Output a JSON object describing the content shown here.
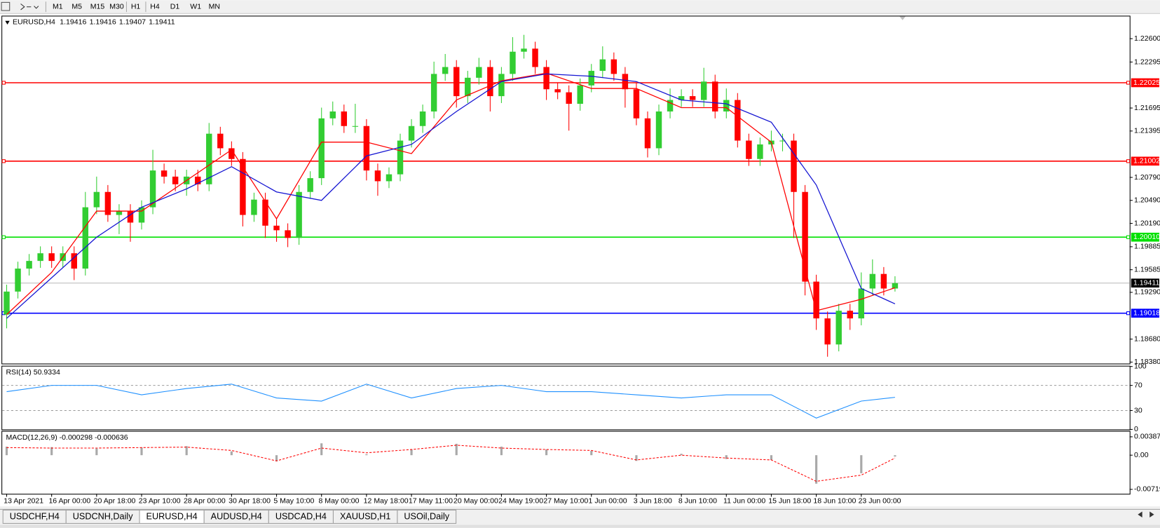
{
  "toolbar": {
    "timeframes": [
      "M1",
      "M5",
      "M15",
      "M30",
      "H1",
      "H4",
      "D1",
      "W1",
      "MN"
    ]
  },
  "chart_data": [
    {
      "type": "candlestick",
      "title": "EURUSD,H4",
      "quote": [
        1.19416,
        1.19416,
        1.19407,
        1.19411
      ],
      "categories": [
        "13 Apr 2021",
        null,
        null,
        null,
        "16 Apr 00:00",
        null,
        null,
        null,
        "20 Apr 18:00",
        null,
        null,
        null,
        "23 Apr 10:00",
        null,
        null,
        null,
        "28 Apr 00:00",
        null,
        null,
        null,
        "30 Apr 18:00",
        null,
        null,
        null,
        "5 May 10:00",
        null,
        null,
        null,
        "8 May 00:00",
        null,
        null,
        null,
        "12 May 18:00",
        null,
        null,
        null,
        "17 May 11:00",
        null,
        null,
        null,
        "20 May 00:00",
        null,
        null,
        null,
        "24 May 19:00",
        null,
        null,
        null,
        "27 May 10:00",
        null,
        null,
        null,
        "1 Jun 00:00",
        null,
        null,
        null,
        "3 Jun 18:00",
        null,
        null,
        null,
        "8 Jun 10:00",
        null,
        null,
        null,
        "11 Jun 00:00",
        null,
        null,
        null,
        "15 Jun 18:00",
        null,
        null,
        null,
        "18 Jun 10:00",
        null,
        null,
        null,
        "23 Jun 00:00",
        null,
        null,
        null
      ],
      "open": [
        1.19,
        1.193,
        1.196,
        1.197,
        1.198,
        1.197,
        1.198,
        1.196,
        1.204,
        1.206,
        1.203,
        1.2035,
        1.202,
        1.204,
        1.2088,
        1.208,
        1.207,
        1.208,
        1.207,
        1.2136,
        1.2117,
        1.2103,
        1.203,
        1.205,
        1.2016,
        1.201,
        1.2,
        1.206,
        1.2078,
        1.2156,
        1.2165,
        1.2146,
        1.2146,
        1.2088,
        1.2074,
        1.2083,
        1.2127,
        1.2146,
        1.2165,
        1.2214,
        1.2223,
        1.2185,
        1.2209,
        1.2223,
        1.2185,
        1.2214,
        1.2243,
        1.2247,
        1.2223,
        1.2194,
        1.219,
        1.2175,
        1.2199,
        1.2218,
        1.2233,
        1.2214,
        1.2194,
        1.2156,
        1.2117,
        1.2165,
        1.218,
        1.2185,
        1.218,
        1.2204,
        1.2165,
        1.218,
        1.2127,
        1.2103,
        1.2122,
        1.2127,
        1.2127,
        1.206,
        1.1943,
        1.1895,
        1.1861,
        1.1905,
        1.1895,
        1.1934,
        1.1953,
        1.1934
      ],
      "high": [
        1.1939,
        1.1969,
        1.1979,
        1.1989,
        1.1989,
        1.1989,
        1.1989,
        1.206,
        1.208,
        1.2069,
        1.2044,
        1.2044,
        1.2049,
        1.2115,
        1.2097,
        1.2089,
        1.2089,
        1.2089,
        1.215,
        1.2145,
        1.2126,
        1.2112,
        1.2059,
        1.2059,
        1.2025,
        1.2019,
        1.2069,
        1.2087,
        1.217,
        1.2178,
        1.2174,
        1.2175,
        1.2155,
        1.2097,
        1.2092,
        1.2136,
        1.2155,
        1.2174,
        1.223,
        1.224,
        1.2232,
        1.2218,
        1.2235,
        1.2232,
        1.2223,
        1.2262,
        1.2265,
        1.2256,
        1.2232,
        1.2203,
        1.2199,
        1.2208,
        1.2227,
        1.225,
        1.2242,
        1.2223,
        1.2203,
        1.2165,
        1.2174,
        1.2195,
        1.2194,
        1.2194,
        1.2222,
        1.2213,
        1.2195,
        1.2189,
        1.2136,
        1.2131,
        1.214,
        1.2136,
        1.2136,
        1.2069,
        1.1952,
        1.1904,
        1.1914,
        1.1914,
        1.1955,
        1.1972,
        1.1962,
        1.195
      ],
      "low": [
        1.1882,
        1.1921,
        1.1951,
        1.1961,
        1.1961,
        1.1961,
        1.1945,
        1.1951,
        1.2031,
        1.2021,
        1.2005,
        1.1995,
        1.2011,
        1.2031,
        1.2071,
        1.2061,
        1.2055,
        1.2061,
        1.2061,
        1.2108,
        1.2094,
        1.2015,
        1.2021,
        1.2,
        1.1995,
        1.1988,
        1.1991,
        1.2051,
        1.2069,
        1.2147,
        1.2137,
        1.2137,
        1.2075,
        1.2055,
        1.2065,
        1.2074,
        1.2118,
        1.2137,
        1.2156,
        1.2205,
        1.217,
        1.2176,
        1.22,
        1.2165,
        1.2176,
        1.2205,
        1.2234,
        1.2214,
        1.218,
        1.2181,
        1.214,
        1.2166,
        1.219,
        1.2209,
        1.2205,
        1.217,
        1.2147,
        1.2105,
        1.2108,
        1.2156,
        1.2171,
        1.2171,
        1.2171,
        1.2156,
        1.2156,
        1.2118,
        1.2094,
        1.2094,
        1.2113,
        1.2113,
        1.2,
        1.1925,
        1.188,
        1.1845,
        1.1852,
        1.188,
        1.1886,
        1.1925,
        1.1925,
        1.193
      ],
      "close": [
        1.193,
        1.196,
        1.197,
        1.198,
        1.197,
        1.198,
        1.196,
        1.204,
        1.206,
        1.203,
        1.2035,
        1.202,
        1.204,
        1.2088,
        1.208,
        1.207,
        1.208,
        1.207,
        1.2136,
        1.2117,
        1.2103,
        1.203,
        1.205,
        1.2016,
        1.201,
        1.2,
        1.206,
        1.2078,
        1.2156,
        1.2165,
        1.2146,
        1.2146,
        1.2088,
        1.2074,
        1.2083,
        1.2127,
        1.2146,
        1.2165,
        1.2214,
        1.2223,
        1.2185,
        1.2209,
        1.2223,
        1.2185,
        1.2214,
        1.2243,
        1.2247,
        1.2223,
        1.2194,
        1.219,
        1.2175,
        1.2199,
        1.2218,
        1.2233,
        1.2214,
        1.2194,
        1.2156,
        1.2117,
        1.2165,
        1.218,
        1.2185,
        1.218,
        1.2204,
        1.2165,
        1.218,
        1.2127,
        1.2103,
        1.2122,
        1.2127,
        1.2127,
        1.206,
        1.1943,
        1.1895,
        1.1861,
        1.1905,
        1.1895,
        1.1934,
        1.1953,
        1.1934,
        1.1941
      ],
      "up_color": "#32cd32",
      "down_color": "#ff0000",
      "series": [
        {
          "color": "#ff0000",
          "x": [
            0,
            4,
            8,
            12,
            16,
            20,
            24,
            28,
            32,
            36,
            40,
            44,
            48,
            52,
            56,
            60,
            64,
            68,
            72,
            76,
            79
          ],
          "values": [
            1.19,
            1.1955,
            1.2035,
            1.2035,
            1.2075,
            1.2115,
            1.2025,
            1.2125,
            1.2125,
            1.211,
            1.218,
            1.2205,
            1.2215,
            1.2195,
            1.2195,
            1.217,
            1.217,
            1.2125,
            1.1905,
            1.192,
            1.1935
          ]
        },
        {
          "color": "#1414d2",
          "x": [
            0,
            4,
            8,
            12,
            16,
            20,
            24,
            28,
            32,
            36,
            40,
            44,
            48,
            52,
            56,
            60,
            64,
            68,
            72,
            76,
            79
          ],
          "values": [
            1.1895,
            1.1948,
            1.2001,
            1.204,
            1.2064,
            1.2093,
            1.206,
            1.2049,
            1.2107,
            1.2122,
            1.2165,
            1.2204,
            1.2214,
            1.2211,
            1.2204,
            1.218,
            1.2175,
            1.2151,
            1.2069,
            1.1934,
            1.1914
          ]
        }
      ],
      "price_lines": [
        {
          "value": 1.22025,
          "color": "#ff0000"
        },
        {
          "value": 1.21002,
          "color": "#ff0000"
        },
        {
          "value": 1.2001,
          "label": "1.20010",
          "color": "#00e000"
        },
        {
          "value": 1.19018,
          "color": "#0000ff"
        }
      ],
      "current_price": 1.19411,
      "ylim": [
        1.18361,
        1.2289
      ],
      "yticks": [
        {
          "value": 1.226,
          "label": "1.22600"
        },
        1.22295,
        1.21695,
        1.21395,
        {
          "value": 1.2079,
          "label": "1.20790"
        },
        {
          "value": 1.2049,
          "label": "1.20490"
        },
        {
          "value": 1.2019,
          "label": "1.20190"
        },
        1.19885,
        1.19585,
        {
          "value": 1.1929,
          "label": "1.19290"
        },
        {
          "value": 1.1868,
          "label": "1.18680"
        },
        {
          "value": 1.1838,
          "label": "1.18380"
        }
      ]
    },
    {
      "type": "line",
      "title": "RSI(14) 50.9334",
      "color": "#1e90ff",
      "x": [
        0,
        4,
        8,
        12,
        16,
        20,
        24,
        28,
        32,
        36,
        40,
        44,
        48,
        52,
        56,
        60,
        64,
        68,
        72,
        76,
        79
      ],
      "values": [
        60,
        70,
        70,
        55,
        65,
        72,
        50,
        45,
        72,
        50,
        65,
        70,
        60,
        60,
        55,
        50,
        55,
        55,
        18,
        45,
        51
      ],
      "ylim": [
        0,
        100
      ],
      "yticks": [
        100,
        70,
        30,
        0
      ],
      "grid": true
    },
    {
      "type": "macd",
      "title": "MACD(12,26,9) -0.000298 -0.000636",
      "x": [
        0,
        4,
        8,
        12,
        16,
        20,
        24,
        28,
        32,
        36,
        40,
        44,
        48,
        52,
        56,
        60,
        64,
        68,
        72,
        76,
        79
      ],
      "histogram": {
        "color": "#a9a9a9",
        "values": [
          0.0018,
          0.0017,
          0.0014,
          0.0016,
          0.0019,
          0.0008,
          -0.0013,
          0.0025,
          0.0002,
          0.0012,
          0.0024,
          0.0018,
          0.0012,
          0.0009,
          -0.0012,
          0.0003,
          -0.0008,
          -0.001,
          -0.006,
          -0.0038,
          -0.0003
        ]
      },
      "signal": {
        "color": "#ff0000",
        "values": [
          0.0016,
          0.0015,
          0.0015,
          0.0016,
          0.0017,
          0.001,
          -0.0012,
          0.0015,
          0.0005,
          0.0012,
          0.0021,
          0.0015,
          0.0012,
          0.001,
          -0.001,
          0.0,
          -0.0006,
          -0.001,
          -0.0055,
          -0.0042,
          -0.0006
        ]
      },
      "ylim": [
        -0.00813,
        0.00496
      ],
      "yticks": [
        0.003873,
        {
          "value": 0,
          "label": "0.00"
        },
        -0.007195
      ]
    }
  ],
  "tabs": {
    "items": [
      "USDCHF,H4",
      "USDCNH,Daily",
      "EURUSD,H4",
      "AUDUSD,H4",
      "USDCAD,H4",
      "XAUUSD,H1",
      "USOil,Daily"
    ],
    "active": 2
  }
}
